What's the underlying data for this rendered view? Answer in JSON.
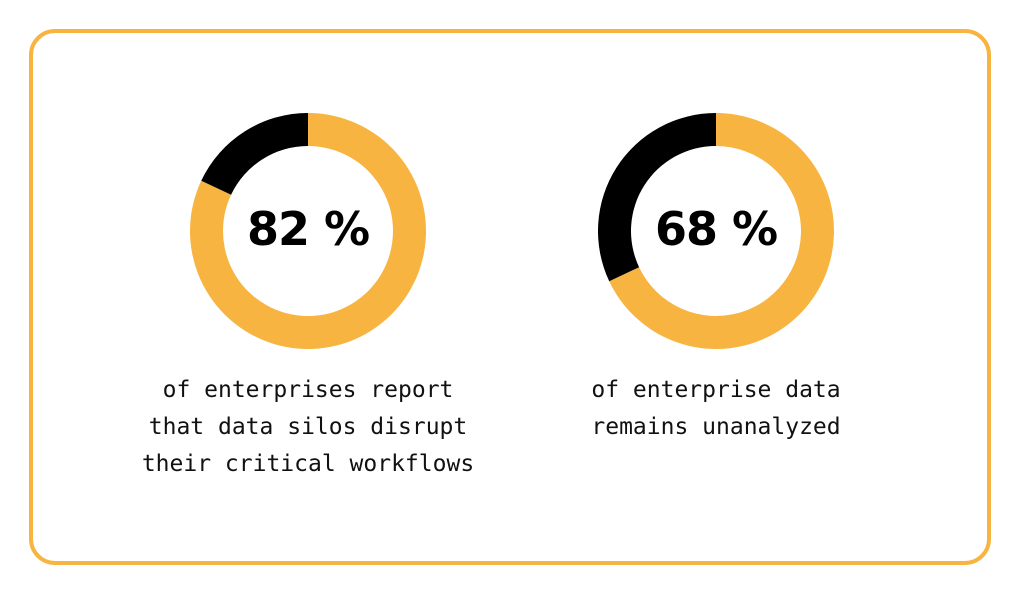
{
  "colors": {
    "accent": "#f7b440",
    "remainder": "#000000",
    "frame": "#f7b440",
    "background": "#ffffff"
  },
  "chart_data": [
    {
      "type": "pie",
      "variant": "donut",
      "value": 82,
      "value_label": "82 %",
      "slices": [
        {
          "value": 82,
          "color": "#f7b440"
        },
        {
          "value": 18,
          "color": "#000000"
        }
      ],
      "caption_lines": [
        "of enterprises report",
        "that data silos disrupt",
        "their critical workflows"
      ]
    },
    {
      "type": "pie",
      "variant": "donut",
      "value": 68,
      "value_label": "68 %",
      "slices": [
        {
          "value": 68,
          "color": "#f7b440"
        },
        {
          "value": 32,
          "color": "#000000"
        }
      ],
      "caption_lines": [
        "of enterprise data",
        "remains unanalyzed"
      ]
    }
  ]
}
